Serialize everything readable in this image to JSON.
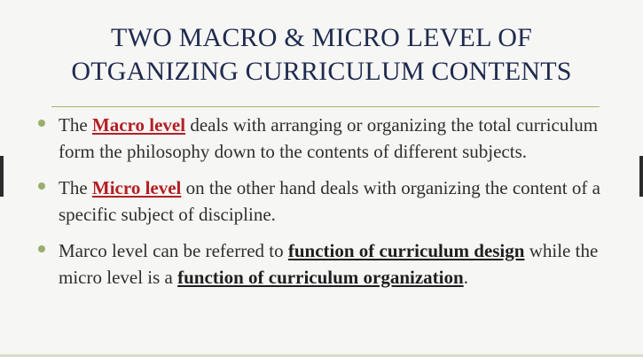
{
  "slide": {
    "title_lines": [
      "TWO MACRO & MICRO LEVEL OF",
      "OTGANIZING CURRICULUM CONTENTS"
    ],
    "bullets": [
      {
        "prefix": "The ",
        "term": "Macro level",
        "rest": " deals with arranging or organizing the total curriculum form the philosophy down to the contents of different subjects."
      },
      {
        "prefix": "The ",
        "term": "Micro level",
        "rest": " on the other hand deals with organizing the content of a specific subject of discipline."
      },
      {
        "prefix": "Marco level can be referred to ",
        "term1": "function of curriculum design",
        "middle": " while the micro level is a ",
        "term2": "function of curriculum organization",
        "suffix": "."
      }
    ]
  },
  "colors": {
    "title": "#1f2a4f",
    "accent_red": "#b21f24",
    "bullet": "#9aae6e",
    "rule": "#a9b46a"
  }
}
